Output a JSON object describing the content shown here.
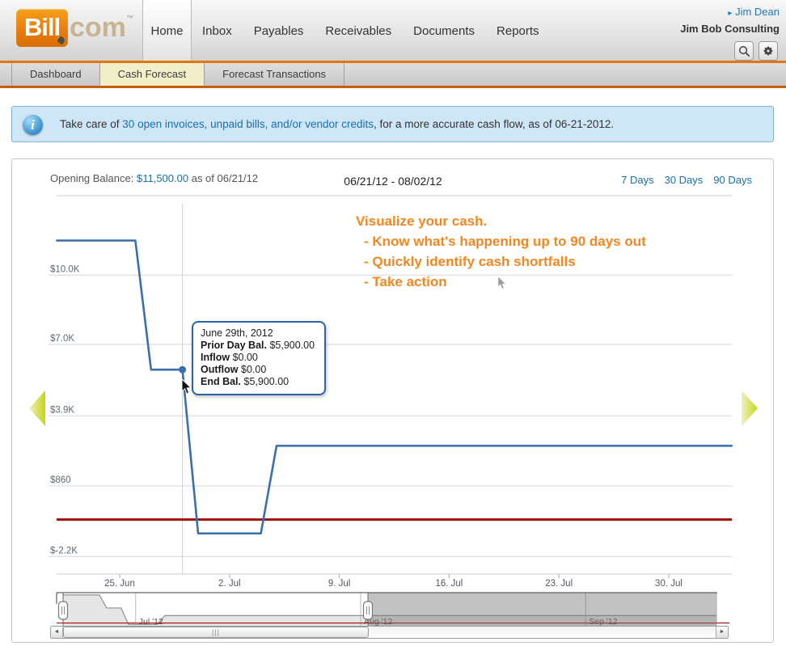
{
  "header": {
    "logo": {
      "bill": "Bill",
      "com": "com",
      "tm": "™"
    },
    "nav": [
      {
        "label": "Home",
        "active": true
      },
      {
        "label": "Inbox"
      },
      {
        "label": "Payables"
      },
      {
        "label": "Receivables"
      },
      {
        "label": "Documents"
      },
      {
        "label": "Reports"
      }
    ],
    "user_menu_arrow": "▸",
    "user_menu": "Jim Dean",
    "company": "Jim Bob Consulting",
    "icons": [
      {
        "name": "search-icon"
      },
      {
        "name": "settings-gear-icon"
      }
    ]
  },
  "subnav": {
    "tabs": [
      {
        "label": "Dashboard",
        "active": false
      },
      {
        "label": "Cash Forecast",
        "active": true
      },
      {
        "label": "Forecast Transactions",
        "active": false
      }
    ]
  },
  "banner": {
    "icon": "info-icon",
    "text_prefix": "Take care of ",
    "link_text": "30 open invoices, unpaid bills, and/or vendor credits",
    "text_suffix": ", for a more accurate cash flow, as of 06-21-2012."
  },
  "panel": {
    "opening_balance_label": "Opening Balance:",
    "opening_balance_value": "$11,500.00",
    "opening_balance_asof": "as of 06/21/12",
    "date_range": "06/21/12 - 08/02/12",
    "range_links": [
      "7 Days",
      "30 Days",
      "90 Days"
    ]
  },
  "promo": {
    "title": "Visualize your cash.",
    "bullets": [
      "- Know what's happening up to 90 days out",
      "- Quickly identify cash shortfalls",
      "- Take action"
    ]
  },
  "tooltip": {
    "date": "June 29th, 2012",
    "rows": [
      {
        "label": "Prior Day Bal.",
        "value": "$5,900.00"
      },
      {
        "label": "Inflow",
        "value": "$0.00"
      },
      {
        "label": "Outflow",
        "value": "$0.00"
      },
      {
        "label": "End Bal.",
        "value": "$5,900.00"
      }
    ]
  },
  "chart_data": {
    "type": "line",
    "title": "Cash forecast daily balance",
    "x_range": "06/21/12 - 08/02/12",
    "y_ticks": [
      {
        "label": "$10.0K",
        "value": 10000
      },
      {
        "label": "$7.0K",
        "value": 7000
      },
      {
        "label": "$3.9K",
        "value": 3900
      },
      {
        "label": "$860",
        "value": 860
      },
      {
        "label": "$-2.2K",
        "value": -2200
      }
    ],
    "x_ticks": [
      {
        "label": "25. Jun",
        "day": 4
      },
      {
        "label": "2. Jul",
        "day": 11
      },
      {
        "label": "9. Jul",
        "day": 18
      },
      {
        "label": "16. Jul",
        "day": 25
      },
      {
        "label": "23. Jul",
        "day": 32
      },
      {
        "label": "30. Jul",
        "day": 39
      }
    ],
    "series": [
      {
        "name": "projected-balance",
        "segments": [
          {
            "from": "06/21/12",
            "to": "06/26/12",
            "value": 11500
          },
          {
            "from": "06/27/12",
            "to": "06/29/12",
            "value": 5900
          },
          {
            "from": "06/30/12",
            "to": "07/04/12",
            "value": -1200
          },
          {
            "from": "07/05/12",
            "to": "08/02/12",
            "value": 2600
          }
        ]
      }
    ],
    "threshold_line": {
      "value": -600,
      "color": "#a50d0d"
    },
    "hover_point": {
      "date": "06/29/12",
      "day": 8,
      "value": 5900
    },
    "ylim": [
      -2860,
      13450
    ],
    "grid": true,
    "legend": false
  },
  "navigator": {
    "months": [
      {
        "label": "Jul '12",
        "day": 10
      },
      {
        "label": "Aug '12",
        "day": 41
      },
      {
        "label": "Sep '12",
        "day": 72
      }
    ],
    "selection": {
      "from_day": 0,
      "to_day": 42
    },
    "total_days": 90
  },
  "scrollbar": {
    "left_arrow": "◄",
    "right_arrow": "►",
    "grip": "|||"
  },
  "colors": {
    "brand_orange": "#e87d0e",
    "subnav_active_bg": "#f1efc9",
    "link_blue": "#1b6fb0",
    "banner_bg": "#cfe6f7",
    "line_blue": "#3a6fad",
    "threshold_red": "#a50d0d",
    "promo_orange": "#f5861f",
    "pager_green": "#ccd72f"
  }
}
